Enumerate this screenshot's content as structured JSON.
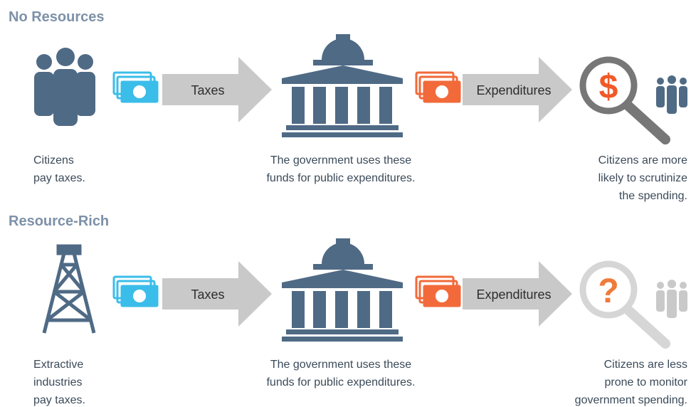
{
  "sections": [
    {
      "title": "No Resources",
      "source_text": [
        "Citizens",
        "pay taxes."
      ],
      "flow_1": "Taxes",
      "government_text": [
        "The government uses these",
        "funds for public expenditures."
      ],
      "flow_2": "Expenditures",
      "outcome_text": [
        "Citizens are more",
        "likely to scrutinize",
        "the spending."
      ]
    },
    {
      "title": "Resource-Rich",
      "source_text": [
        "Extractive",
        "industries",
        "pay taxes."
      ],
      "flow_1": "Taxes",
      "government_text": [
        "The government uses these",
        "funds for public expenditures."
      ],
      "flow_2": "Expenditures",
      "outcome_text": [
        "Citizens are less",
        "prone to monitor",
        "government spending."
      ]
    }
  ]
}
